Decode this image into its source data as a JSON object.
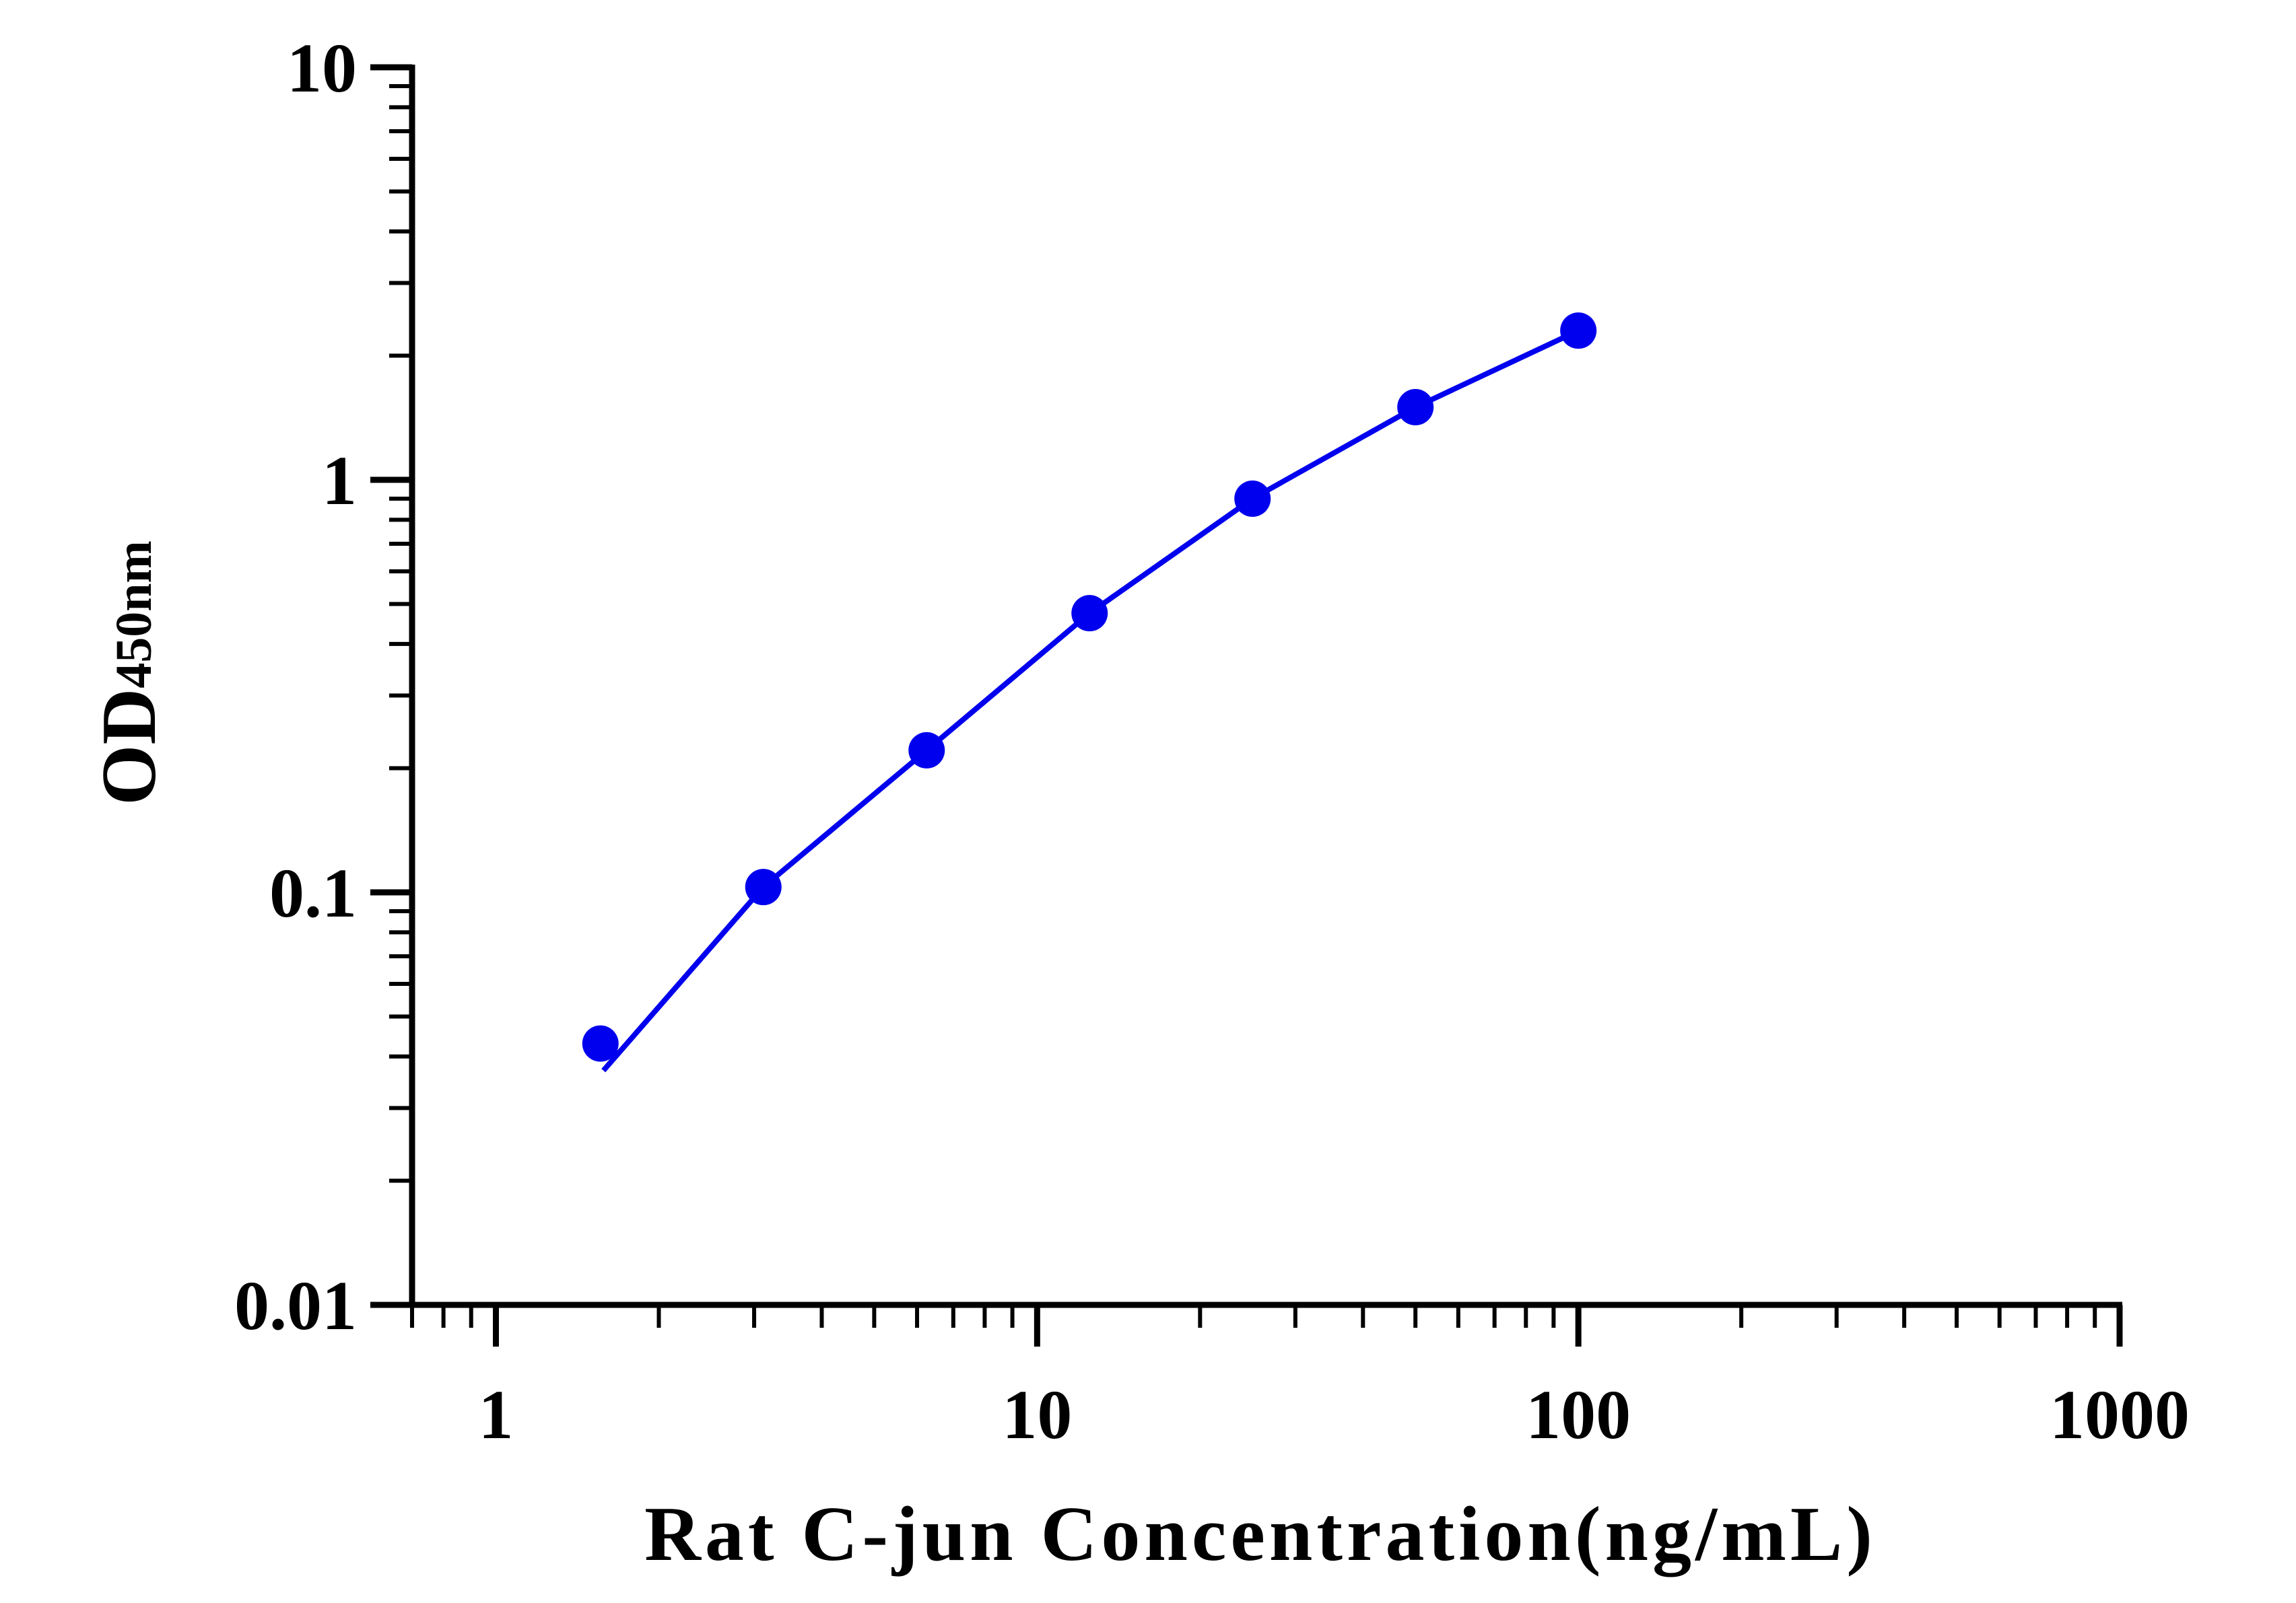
{
  "chart_data": {
    "type": "scatter",
    "xlabel": "Rat C-jun Concentration(ng/mL)",
    "ylabel": {
      "main": "OD",
      "subscript": "450nm"
    },
    "x_scale": "log",
    "y_scale": "log",
    "xlim": [
      0.7,
      1000
    ],
    "ylim": [
      0.01,
      10
    ],
    "x_ticks": [
      {
        "value": 1,
        "label": "1"
      },
      {
        "value": 10,
        "label": "10"
      },
      {
        "value": 100,
        "label": "100"
      },
      {
        "value": 1000,
        "label": "1000"
      }
    ],
    "y_ticks": [
      {
        "value": 0.01,
        "label": "0.01"
      },
      {
        "value": 0.1,
        "label": "0.1"
      },
      {
        "value": 1,
        "label": "1"
      },
      {
        "value": 10,
        "label": "10"
      }
    ],
    "grid": false,
    "legend": "none",
    "series": [
      {
        "color": "#0000ee",
        "points": [
          {
            "x": 1.56,
            "y": 0.043
          },
          {
            "x": 3.12,
            "y": 0.103
          },
          {
            "x": 6.25,
            "y": 0.221
          },
          {
            "x": 12.5,
            "y": 0.475
          },
          {
            "x": 25,
            "y": 0.9
          },
          {
            "x": 50,
            "y": 1.5
          },
          {
            "x": 100,
            "y": 2.3
          }
        ],
        "fit_line": [
          {
            "x": 1.58,
            "y": 0.037
          },
          {
            "x": 3.12,
            "y": 0.103
          },
          {
            "x": 6.25,
            "y": 0.221
          },
          {
            "x": 12.5,
            "y": 0.475
          },
          {
            "x": 25,
            "y": 0.9
          },
          {
            "x": 50,
            "y": 1.5
          },
          {
            "x": 100,
            "y": 2.3
          }
        ]
      }
    ]
  }
}
